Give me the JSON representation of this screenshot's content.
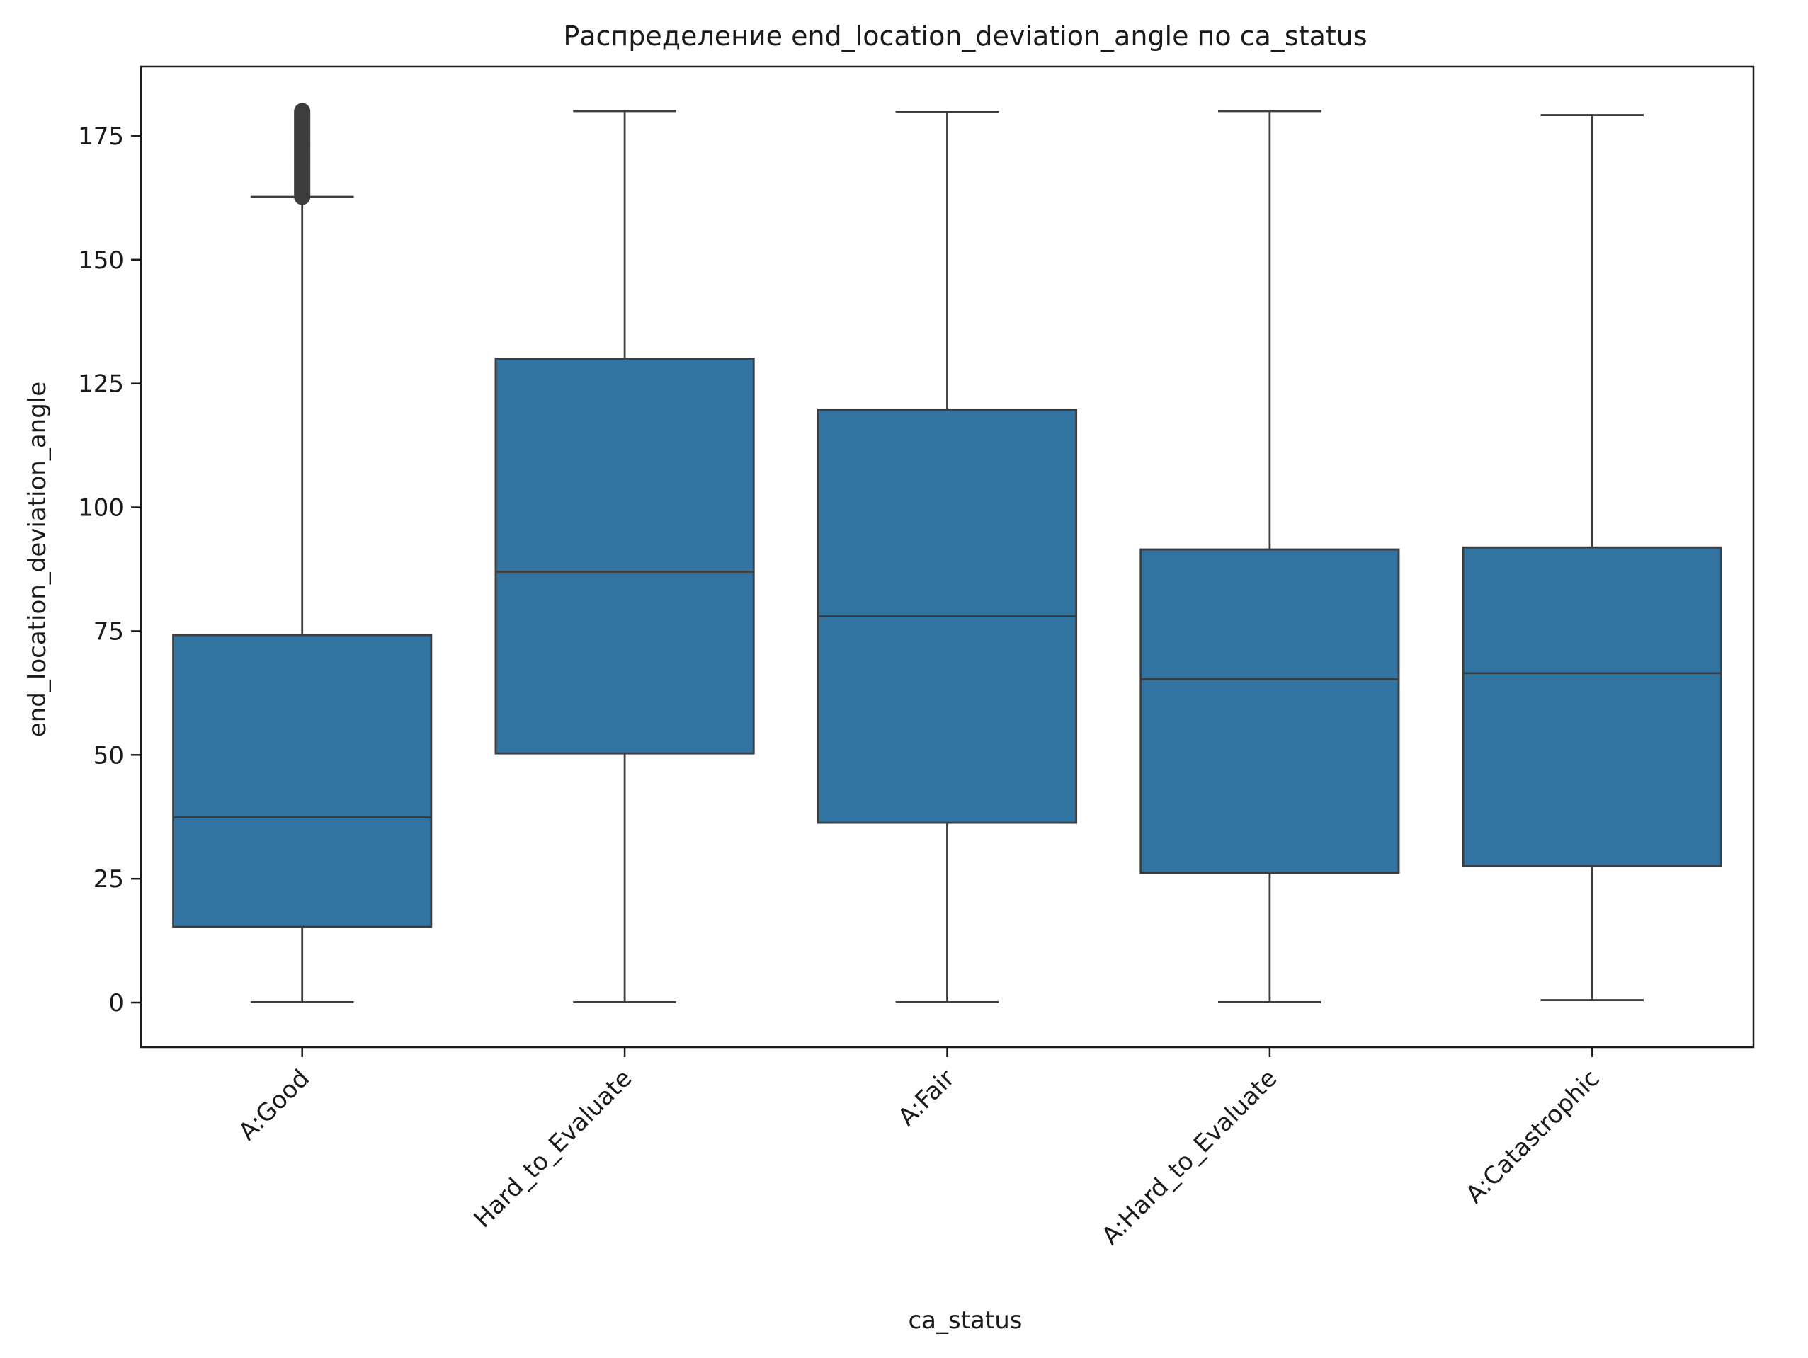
{
  "chart_data": {
    "type": "box",
    "title": "Распределение end_location_deviation_angle по ca_status",
    "xlabel": "ca_status",
    "ylabel": "end_location_deviation_angle",
    "ylim": [
      -9,
      189
    ],
    "yticks": [
      0,
      25,
      50,
      75,
      100,
      125,
      150,
      175
    ],
    "grid": false,
    "colors": {
      "box": "#3274a1",
      "line": "#3d3d3d"
    },
    "categories": [
      "A:Good",
      "Hard_to_Evaluate",
      "A:Fair",
      "A:Hard_to_Evaluate",
      "A:Catastrophic"
    ],
    "boxes": [
      {
        "category": "A:Good",
        "whisker_low": 0.1,
        "q1": 15.3,
        "median": 37.4,
        "q3": 74.2,
        "whisker_high": 162.7,
        "outlier_range": [
          162.7,
          180
        ]
      },
      {
        "category": "Hard_to_Evaluate",
        "whisker_low": 0.1,
        "q1": 50.3,
        "median": 87.0,
        "q3": 130.0,
        "whisker_high": 180.0
      },
      {
        "category": "A:Fair",
        "whisker_low": 0.1,
        "q1": 36.3,
        "median": 78.0,
        "q3": 119.7,
        "whisker_high": 179.8
      },
      {
        "category": "A:Hard_to_Evaluate",
        "whisker_low": 0.1,
        "q1": 26.2,
        "median": 65.3,
        "q3": 91.5,
        "whisker_high": 180.0
      },
      {
        "category": "A:Catastrophic",
        "whisker_low": 0.5,
        "q1": 27.6,
        "median": 66.5,
        "q3": 91.9,
        "whisker_high": 179.2
      }
    ]
  }
}
